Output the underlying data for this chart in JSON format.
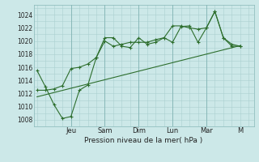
{
  "xlabel": "Pression niveau de la mer( hPa )",
  "bg_color": "#cce8e8",
  "grid_color": "#aad0d0",
  "line_color": "#2d6e2d",
  "ylim": [
    1007,
    1025.5
  ],
  "yticks": [
    1008,
    1010,
    1012,
    1014,
    1016,
    1018,
    1020,
    1022,
    1024
  ],
  "day_labels": [
    "Jeu",
    "Sam",
    "Dim",
    "Lun",
    "Mar",
    "M"
  ],
  "day_positions": [
    2.0,
    4.0,
    6.0,
    8.0,
    10.0,
    12.0
  ],
  "xlim": [
    -0.2,
    12.8
  ],
  "series1_x": [
    0.0,
    0.5,
    1.0,
    1.5,
    2.0,
    2.5,
    3.0,
    3.5,
    4.0,
    4.5,
    5.0,
    5.5,
    6.0,
    6.5,
    7.0,
    7.5,
    8.0,
    8.5,
    9.0,
    9.5,
    10.0,
    10.5,
    11.0,
    11.5,
    12.0
  ],
  "series1_y": [
    1015.5,
    1013.0,
    1010.3,
    1008.2,
    1008.5,
    1012.5,
    1013.3,
    1017.5,
    1020.5,
    1020.5,
    1019.2,
    1019.0,
    1020.5,
    1019.5,
    1019.8,
    1020.5,
    1019.8,
    1022.2,
    1022.3,
    1019.8,
    1022.0,
    1024.5,
    1020.5,
    1019.2,
    1019.2
  ],
  "series2_x": [
    0.0,
    0.5,
    1.0,
    1.5,
    2.0,
    2.5,
    3.0,
    3.5,
    4.0,
    4.5,
    5.0,
    5.5,
    6.0,
    6.5,
    7.0,
    7.5,
    8.0,
    8.5,
    9.0,
    9.5,
    10.0,
    10.5,
    11.0,
    11.5,
    12.0
  ],
  "series2_y": [
    1012.5,
    1012.5,
    1012.7,
    1013.2,
    1015.8,
    1016.0,
    1016.5,
    1017.5,
    1020.0,
    1019.2,
    1019.5,
    1019.8,
    1019.8,
    1019.8,
    1020.2,
    1020.5,
    1022.3,
    1022.3,
    1022.0,
    1021.8,
    1022.0,
    1024.5,
    1020.5,
    1019.5,
    1019.2
  ],
  "trend_x": [
    0.0,
    12.0
  ],
  "trend_y": [
    1011.5,
    1019.3
  ]
}
